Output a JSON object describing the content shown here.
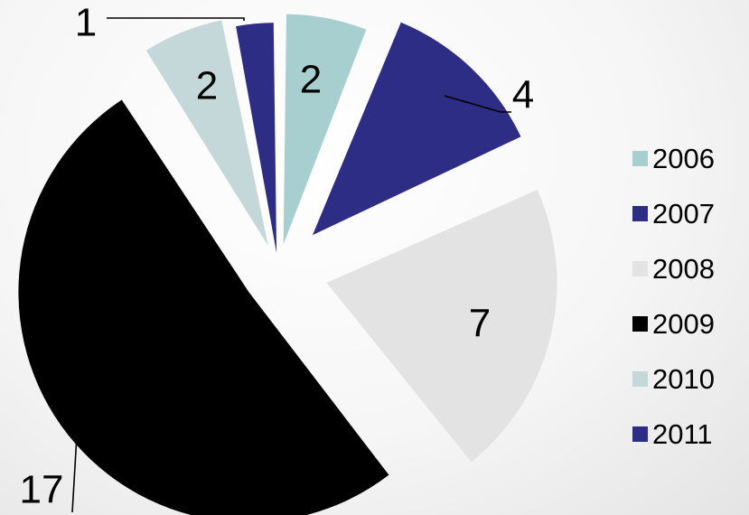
{
  "chart_data": {
    "type": "pie",
    "title": "",
    "legend_position": "right",
    "slices": [
      {
        "category": "2006",
        "value": 2,
        "label": "2",
        "color": "#a8cfd0"
      },
      {
        "category": "2007",
        "value": 4,
        "label": "4",
        "color": "#2e2d86"
      },
      {
        "category": "2008",
        "value": 7,
        "label": "7",
        "color": "#e3e3e3"
      },
      {
        "category": "2009",
        "value": 17,
        "label": "17",
        "color": "#000000"
      },
      {
        "category": "2010",
        "value": 2,
        "label": "2",
        "color": "#c4d7d9"
      },
      {
        "category": "2011",
        "value": 1,
        "label": "1",
        "color": "#2e2d86"
      }
    ]
  },
  "legend": {
    "items": [
      {
        "label": "2006",
        "color": "#a8cfd0"
      },
      {
        "label": "2007",
        "color": "#2e2d86"
      },
      {
        "label": "2008",
        "color": "#e3e3e3"
      },
      {
        "label": "2009",
        "color": "#000000"
      },
      {
        "label": "2010",
        "color": "#c4d7d9"
      },
      {
        "label": "2011",
        "color": "#2e2d86"
      }
    ]
  }
}
